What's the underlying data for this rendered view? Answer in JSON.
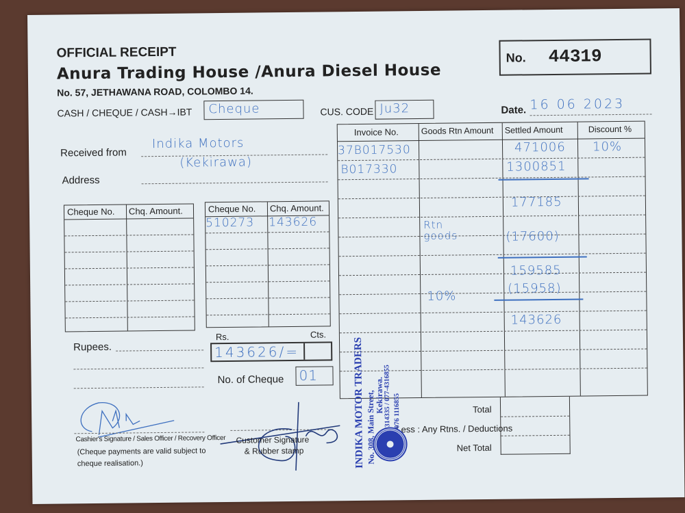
{
  "header": {
    "title": "OFFICIAL RECEIPT",
    "company": "Anura Trading House /Anura Diesel House",
    "address": "No. 57, JETHAWANA ROAD, COLOMBO 14.",
    "no_label": "No.",
    "receipt_no": "44319"
  },
  "payment": {
    "mode_label": "CASH / CHEQUE / CASH→IBT",
    "mode_value": "Cheque",
    "cus_code_label": "CUS. CODE",
    "cus_code_value": "Ju32",
    "date_label": "Date.",
    "date_value": "16 06 2023"
  },
  "customer": {
    "received_from_label": "Received from",
    "received_from_value": "Indika Motors",
    "address_label": "Address",
    "address_value": "(Kekirawa)"
  },
  "invoice_table": {
    "headers": [
      "Invoice No.",
      "Goods Rtn Amount",
      "Settled Amount",
      "Discount %"
    ],
    "invoices": [
      "37B017530",
      "B017330"
    ],
    "discount": "10%",
    "goods_rtn_notes": [
      "Rtn goods",
      "10%"
    ],
    "settled": [
      "471006",
      "1300851",
      "177185",
      "(17600)",
      "159585",
      "(15958)",
      "143626"
    ],
    "total_label": "Total",
    "less_label": "Less : Any Rtns. / Deductions",
    "net_total_label": "Net Total"
  },
  "cheques": {
    "headers": [
      "Cheque No.",
      "Chq. Amount."
    ],
    "cheque_no": "510273",
    "cheque_amount": "143626"
  },
  "amount": {
    "rupees_label": "Rupees.",
    "rs_label": "Rs.",
    "cts_label": "Cts.",
    "rs_value": "143626/=",
    "no_of_cheque_label": "No. of Cheque",
    "no_of_cheque_value": "01"
  },
  "signatures": {
    "cashier_label": "Cashier's Signature / Sales Officer / Recovery Officer",
    "cashier_note": "(Cheque payments are valid subject to cheque realisation.)",
    "customer_label": "Customer Signature",
    "customer_label2": "& Rubber stamp"
  },
  "stamp": {
    "name": "INDIKA MOTOR TRADERS",
    "line1": "No. 308, Main Street,",
    "line2": "Kekirawa.",
    "line3": "Tel: 025-4314335 / 077-4316855",
    "line4": "076 1116855"
  },
  "colors": {
    "ink": "#3d6fbf",
    "stamp": "#2a3fb0",
    "paper": "#e6edf1",
    "background": "#5b3a2f"
  }
}
